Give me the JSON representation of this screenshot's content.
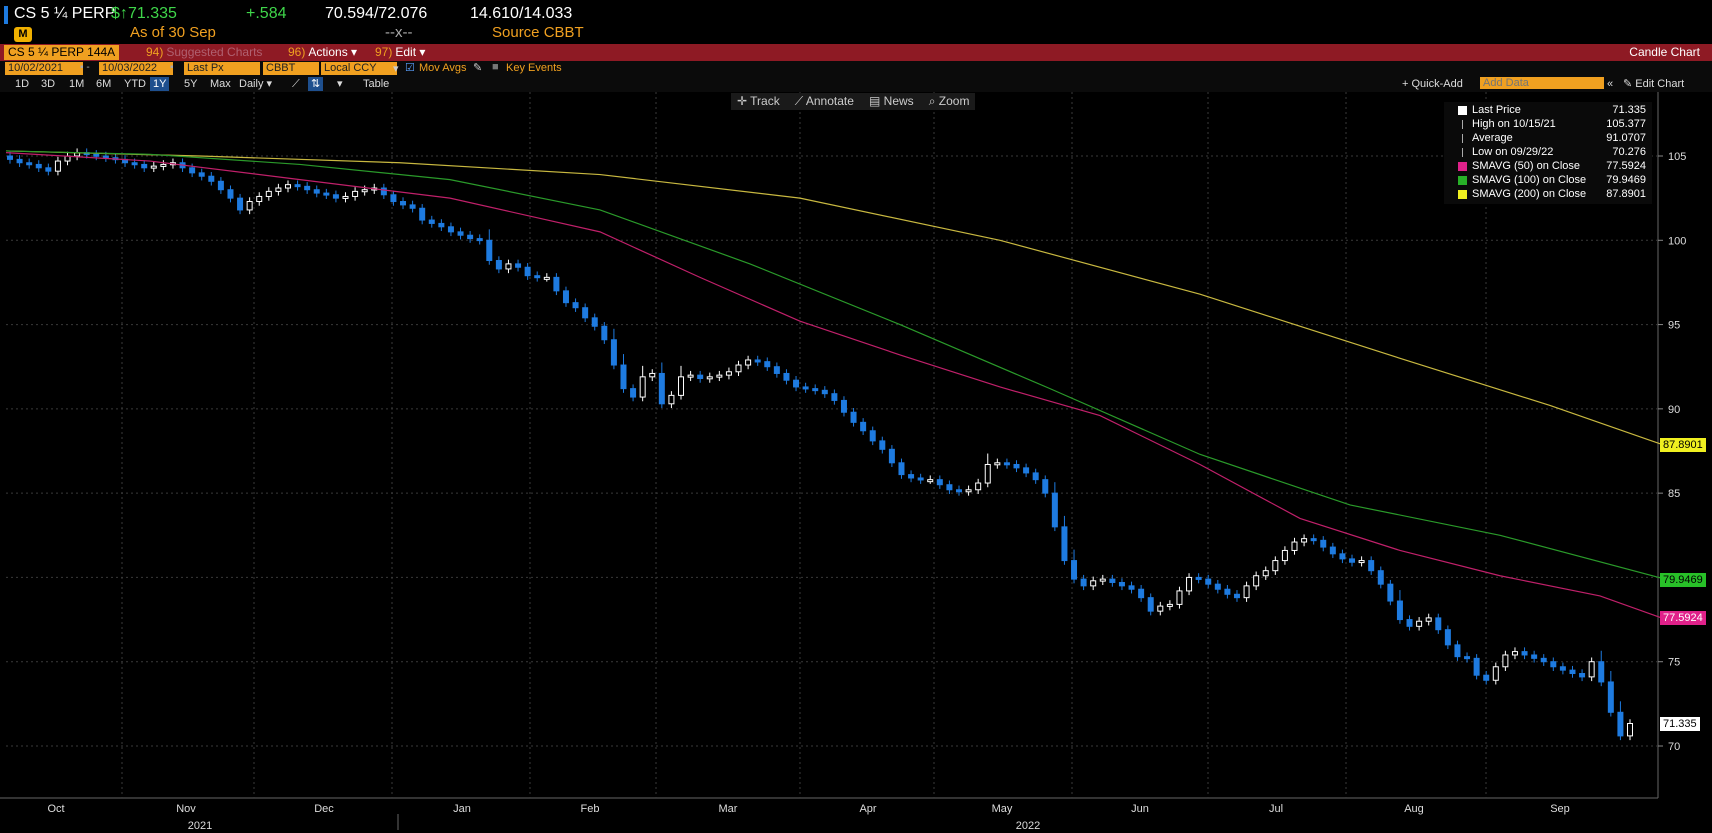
{
  "header": {
    "ticker": "CS 5 ¼ PERP",
    "price": "71.335",
    "price_prefix": "$↑",
    "change": "+.584",
    "bid_ask": "70.594/72.076",
    "yield": "14.610/14.033",
    "as_of": "As of 30 Sep",
    "dashes": "--x--",
    "source": "Source CBBT"
  },
  "redbar": {
    "security": "CS 5 ¼ PERP 144A",
    "suggested_num": "94)",
    "suggested": "Suggested Charts",
    "actions_num": "96)",
    "actions": "Actions",
    "edit_num": "97)",
    "edit": "Edit",
    "chart_type": "Candle Chart"
  },
  "settings": {
    "start_date": "10/02/2021",
    "end_date": "10/03/2022",
    "field": "Last Px",
    "source": "CBBT",
    "currency": "Local CCY",
    "mov_avgs": "Mov Avgs",
    "key_events": "Key Events"
  },
  "ranges": [
    "1D",
    "3D",
    "1M",
    "6M",
    "YTD",
    "1Y",
    "5Y",
    "Max"
  ],
  "selected_range": "1Y",
  "periodicity": "Daily",
  "table_label": "Table",
  "quick_add": "+ Quick-Add",
  "add_data_placeholder": "Add Data",
  "edit_chart": "Edit Chart",
  "tools": {
    "track": "Track",
    "annotate": "Annotate",
    "news": "News",
    "zoom": "Zoom"
  },
  "legend": [
    {
      "name": "Last Price",
      "value": "71.335",
      "color": "#ffffff"
    },
    {
      "name": "High on 10/15/21",
      "value": "105.377",
      "color": ""
    },
    {
      "name": "Average",
      "value": "91.0707",
      "color": ""
    },
    {
      "name": "Low on 09/29/22",
      "value": "70.276",
      "color": ""
    },
    {
      "name": "SMAVG (50)  on Close",
      "value": "77.5924",
      "color": "#e0218a"
    },
    {
      "name": "SMAVG (100)  on Close",
      "value": "79.9469",
      "color": "#28b028"
    },
    {
      "name": "SMAVG (200)  on Close",
      "value": "87.8901",
      "color": "#f0f020"
    }
  ],
  "axis_tags": {
    "sma200": "87.8901",
    "sma100": "79.9469",
    "sma50": "77.5924",
    "last": "71.335"
  },
  "colors": {
    "up": "#ffffff",
    "down": "#1e7be0",
    "sma50": "#c0206a",
    "sma100": "#2a9a2a",
    "sma200": "#c8b840",
    "redbar": "#8e1a24",
    "accent": "#f0a020"
  },
  "chart_data": {
    "type": "candlestick",
    "ylim": [
      67,
      109
    ],
    "yticks": [
      70,
      75,
      80,
      85,
      90,
      95,
      100,
      105
    ],
    "months": [
      "Oct",
      "Nov",
      "Dec",
      "Jan",
      "Feb",
      "Mar",
      "Apr",
      "May",
      "Jun",
      "Jul",
      "Aug",
      "Sep"
    ],
    "years": [
      "2021",
      "2022"
    ],
    "close": [
      104.8,
      104.6,
      104.5,
      104.3,
      104.1,
      104.7,
      105.0,
      105.2,
      105.1,
      105.0,
      104.9,
      104.8,
      104.6,
      104.5,
      104.3,
      104.4,
      104.5,
      104.6,
      104.3,
      104.0,
      103.8,
      103.5,
      103.0,
      102.5,
      101.8,
      102.3,
      102.6,
      102.9,
      103.1,
      103.3,
      103.2,
      103.0,
      102.8,
      102.7,
      102.5,
      102.6,
      102.9,
      103.0,
      103.1,
      102.7,
      102.3,
      102.1,
      101.9,
      101.2,
      101.0,
      100.8,
      100.5,
      100.3,
      100.1,
      100.0,
      98.8,
      98.3,
      98.6,
      98.4,
      97.9,
      97.8,
      97.8,
      97.0,
      96.3,
      96.0,
      95.4,
      94.9,
      94.1,
      92.6,
      91.2,
      90.7,
      91.9,
      92.1,
      90.3,
      90.8,
      91.9,
      92.0,
      91.8,
      91.9,
      92.0,
      92.2,
      92.6,
      92.9,
      92.8,
      92.5,
      92.1,
      91.7,
      91.3,
      91.2,
      91.1,
      90.9,
      90.5,
      89.8,
      89.2,
      88.7,
      88.1,
      87.6,
      86.8,
      86.1,
      85.9,
      85.8,
      85.8,
      85.5,
      85.2,
      85.1,
      85.2,
      85.6,
      86.7,
      86.8,
      86.7,
      86.5,
      86.2,
      85.8,
      85.0,
      83.0,
      81.0,
      79.9,
      79.5,
      79.8,
      79.9,
      79.7,
      79.5,
      79.3,
      78.8,
      78.0,
      78.3,
      78.4,
      79.2,
      80.0,
      79.9,
      79.6,
      79.3,
      79.0,
      78.8,
      79.5,
      80.1,
      80.4,
      81.0,
      81.6,
      82.1,
      82.3,
      82.2,
      81.8,
      81.4,
      81.1,
      80.9,
      81.0,
      80.4,
      79.6,
      78.6,
      77.5,
      77.1,
      77.4,
      77.6,
      76.9,
      76.0,
      75.3,
      75.2,
      74.2,
      73.9,
      74.7,
      75.4,
      75.6,
      75.4,
      75.2,
      75.0,
      74.7,
      74.5,
      74.3,
      74.1,
      75.0,
      73.8,
      72.0,
      70.6,
      71.335
    ]
  }
}
